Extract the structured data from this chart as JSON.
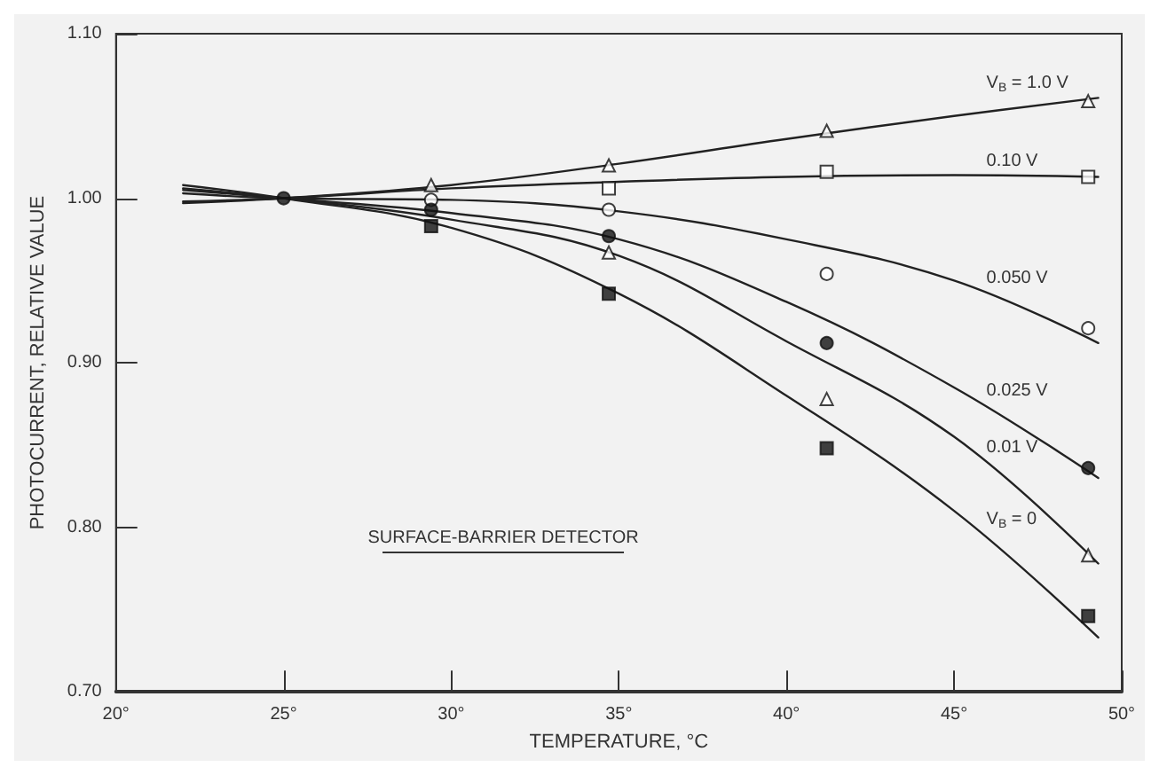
{
  "chart_data": {
    "type": "scatter",
    "xlabel": "TEMPERATURE, °C",
    "ylabel": "PHOTOCURRENT, RELATIVE VALUE",
    "xlim": [
      20,
      50
    ],
    "ylim": [
      0.7,
      1.1
    ],
    "xticks": [
      {
        "value": 20,
        "label": "20°"
      },
      {
        "value": 25,
        "label": "25°"
      },
      {
        "value": 30,
        "label": "30°"
      },
      {
        "value": 35,
        "label": "35°"
      },
      {
        "value": 40,
        "label": "40°"
      },
      {
        "value": 45,
        "label": "45°"
      },
      {
        "value": 50,
        "label": "50°"
      }
    ],
    "yticks": [
      {
        "value": 0.7,
        "label": "0.70"
      },
      {
        "value": 0.8,
        "label": "0.80"
      },
      {
        "value": 0.9,
        "label": "0.90"
      },
      {
        "value": 1.0,
        "label": "1.00"
      },
      {
        "value": 1.1,
        "label": "1.10"
      }
    ],
    "grid": false,
    "legend": false,
    "x": [
      25,
      29.4,
      34.7,
      41.2,
      49.0
    ],
    "series": [
      {
        "marker": "triangle",
        "color": "#ffffff",
        "values": [
          null,
          1.008,
          1.02,
          1.041,
          1.059
        ]
      },
      {
        "marker": "square",
        "color": "#ffffff",
        "values": [
          null,
          null,
          1.006,
          1.016,
          1.013
        ]
      },
      {
        "marker": "circle",
        "color": "#ffffff",
        "values": [
          null,
          0.999,
          0.993,
          0.954,
          0.921
        ]
      },
      {
        "marker": "circle",
        "color": "#111111",
        "values": [
          1.0,
          0.993,
          0.977,
          0.912,
          0.836
        ]
      },
      {
        "marker": "triangle",
        "color": "#ffffff",
        "values": [
          null,
          null,
          0.967,
          0.878,
          0.783
        ]
      },
      {
        "marker": "square",
        "color": "#111111",
        "values": [
          null,
          0.983,
          0.942,
          0.848,
          0.746
        ]
      },
      {
        "type": "line",
        "name": "V$_{B}$ = 1.0 V",
        "color": "#222222",
        "x": [
          22,
          25,
          30,
          35,
          40,
          45,
          49.3
        ],
        "values": [
          0.997,
          1.0,
          1.008,
          1.021,
          1.036,
          1.05,
          1.061
        ]
      },
      {
        "type": "line",
        "name": "0.10 V",
        "color": "#222222",
        "x": [
          22,
          25,
          30,
          35,
          40,
          45,
          49.3
        ],
        "values": [
          0.998,
          1.0,
          1.006,
          1.01,
          1.013,
          1.014,
          1.013
        ]
      },
      {
        "type": "line",
        "name": "0.050 V",
        "color": "#222222",
        "x": [
          22,
          25,
          30,
          35,
          40,
          45,
          49.3
        ],
        "values": [
          1.003,
          1.0,
          0.999,
          0.992,
          0.975,
          0.95,
          0.912
        ]
      },
      {
        "type": "line",
        "name": "0.025 V",
        "color": "#222222",
        "x": [
          22,
          25,
          30,
          35,
          40,
          45,
          49.3
        ],
        "values": [
          1.005,
          1.0,
          0.991,
          0.975,
          0.937,
          0.885,
          0.83
        ]
      },
      {
        "type": "line",
        "name": "0.01 V",
        "color": "#222222",
        "x": [
          22,
          25,
          30,
          35,
          40,
          45,
          49.3
        ],
        "values": [
          1.006,
          1.0,
          0.987,
          0.965,
          0.913,
          0.855,
          0.778
        ]
      },
      {
        "type": "line",
        "name": "V$_{B}$ = 0",
        "color": "#222222",
        "x": [
          22,
          25,
          30,
          35,
          40,
          45,
          49.3
        ],
        "values": [
          1.008,
          1.0,
          0.982,
          0.942,
          0.88,
          0.81,
          0.733
        ]
      }
    ],
    "annotations": [
      "SURFACE-BARRIER DETECTOR"
    ]
  }
}
